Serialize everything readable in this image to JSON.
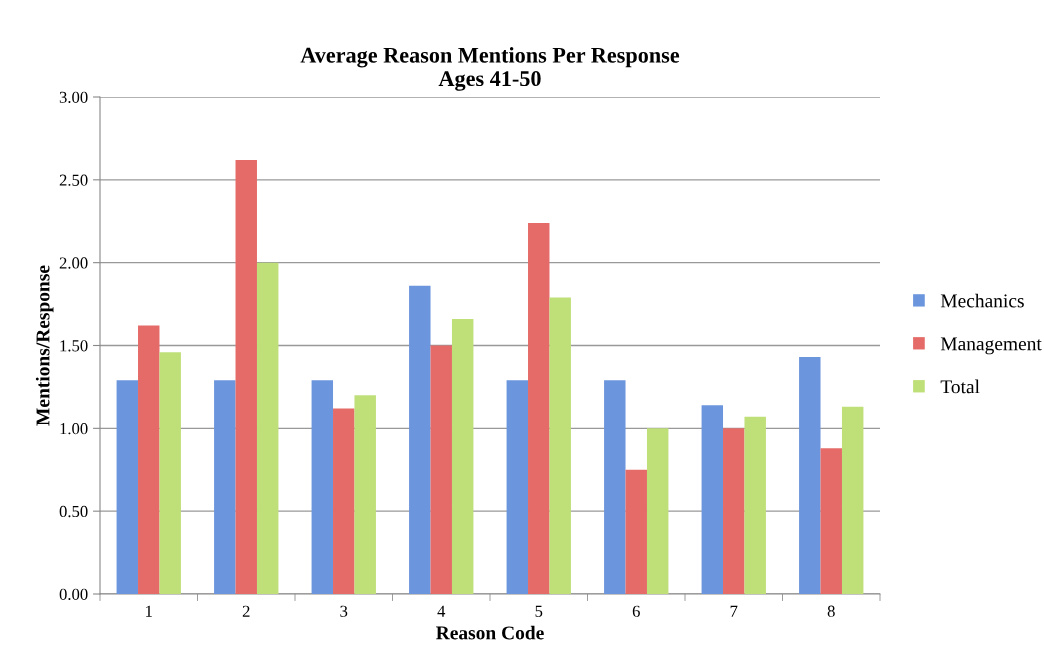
{
  "chart_data": {
    "type": "bar",
    "title": "Average Reason Mentions Per Response\nAges 41-50",
    "xlabel": "Reason Code",
    "ylabel": "Mentions/Response",
    "categories": [
      "1",
      "2",
      "3",
      "4",
      "5",
      "6",
      "7",
      "8"
    ],
    "series": [
      {
        "name": "Mechanics",
        "color": "#6b95dc",
        "values": [
          1.29,
          1.29,
          1.29,
          1.86,
          1.29,
          1.29,
          1.14,
          1.43
        ]
      },
      {
        "name": "Management",
        "color": "#e56b68",
        "values": [
          1.62,
          2.62,
          1.12,
          1.5,
          2.24,
          0.75,
          1.0,
          0.88
        ]
      },
      {
        "name": "Total",
        "color": "#bfdf78",
        "values": [
          1.46,
          2.0,
          1.2,
          1.66,
          1.79,
          1.0,
          1.07,
          1.13
        ]
      }
    ],
    "ylim": [
      0,
      3
    ],
    "yticks": [
      {
        "value": 0,
        "label": "0.00"
      },
      {
        "value": 0.5,
        "label": "0.50"
      },
      {
        "value": 1,
        "label": "1.00"
      },
      {
        "value": 1.5,
        "label": "1.50"
      },
      {
        "value": 2,
        "label": "2.00"
      },
      {
        "value": 2.5,
        "label": "2.50"
      },
      {
        "value": 3,
        "label": "3.00"
      }
    ],
    "grid": "y",
    "legend": "right"
  }
}
